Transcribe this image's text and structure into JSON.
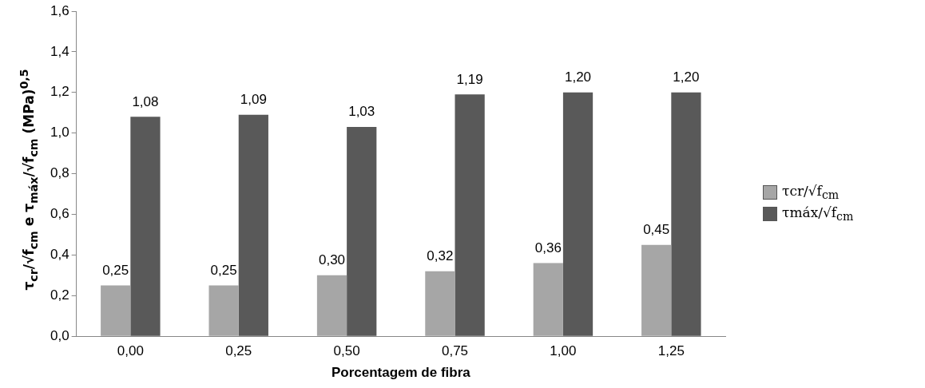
{
  "chart_data": {
    "type": "bar",
    "xlabel": "Porcentagem de fibra",
    "ylabel": "τ$_{cr}$/√f$_{cm}$ e τ$_{máx}$/√f$_{cm}$ (MPa)$^{0,5}$",
    "categories": [
      "0,00",
      "0,25",
      "0,50",
      "0,75",
      "1,00",
      "1,25"
    ],
    "series": [
      {
        "name": "τcr/√f$_{cm}$",
        "color": "#a6a6a6",
        "values": [
          0.25,
          0.25,
          0.3,
          0.32,
          0.36,
          0.45
        ],
        "value_labels": [
          "0,25",
          "0,25",
          "0,30",
          "0,32",
          "0,36",
          "0,45"
        ]
      },
      {
        "name": "τmáx/√f$_{cm}$",
        "color": "#595959",
        "values": [
          1.08,
          1.09,
          1.03,
          1.19,
          1.2,
          1.2
        ],
        "value_labels": [
          "1,08",
          "1,09",
          "1,03",
          "1,19",
          "1,20",
          "1,20"
        ]
      }
    ],
    "ylim": [
      0,
      1.6
    ],
    "yticks": [
      {
        "value": 0,
        "label": "0,0"
      },
      {
        "value": 0.2,
        "label": "0,2"
      },
      {
        "value": 0.4,
        "label": "0,4"
      },
      {
        "value": 0.6,
        "label": "0,6"
      },
      {
        "value": 0.8,
        "label": "0,8"
      },
      {
        "value": 1.0,
        "label": "1,0"
      },
      {
        "value": 1.2,
        "label": "1,2"
      },
      {
        "value": 1.4,
        "label": "1,4"
      },
      {
        "value": 1.6,
        "label": "1,6"
      }
    ],
    "grid": false,
    "legend": "right"
  }
}
